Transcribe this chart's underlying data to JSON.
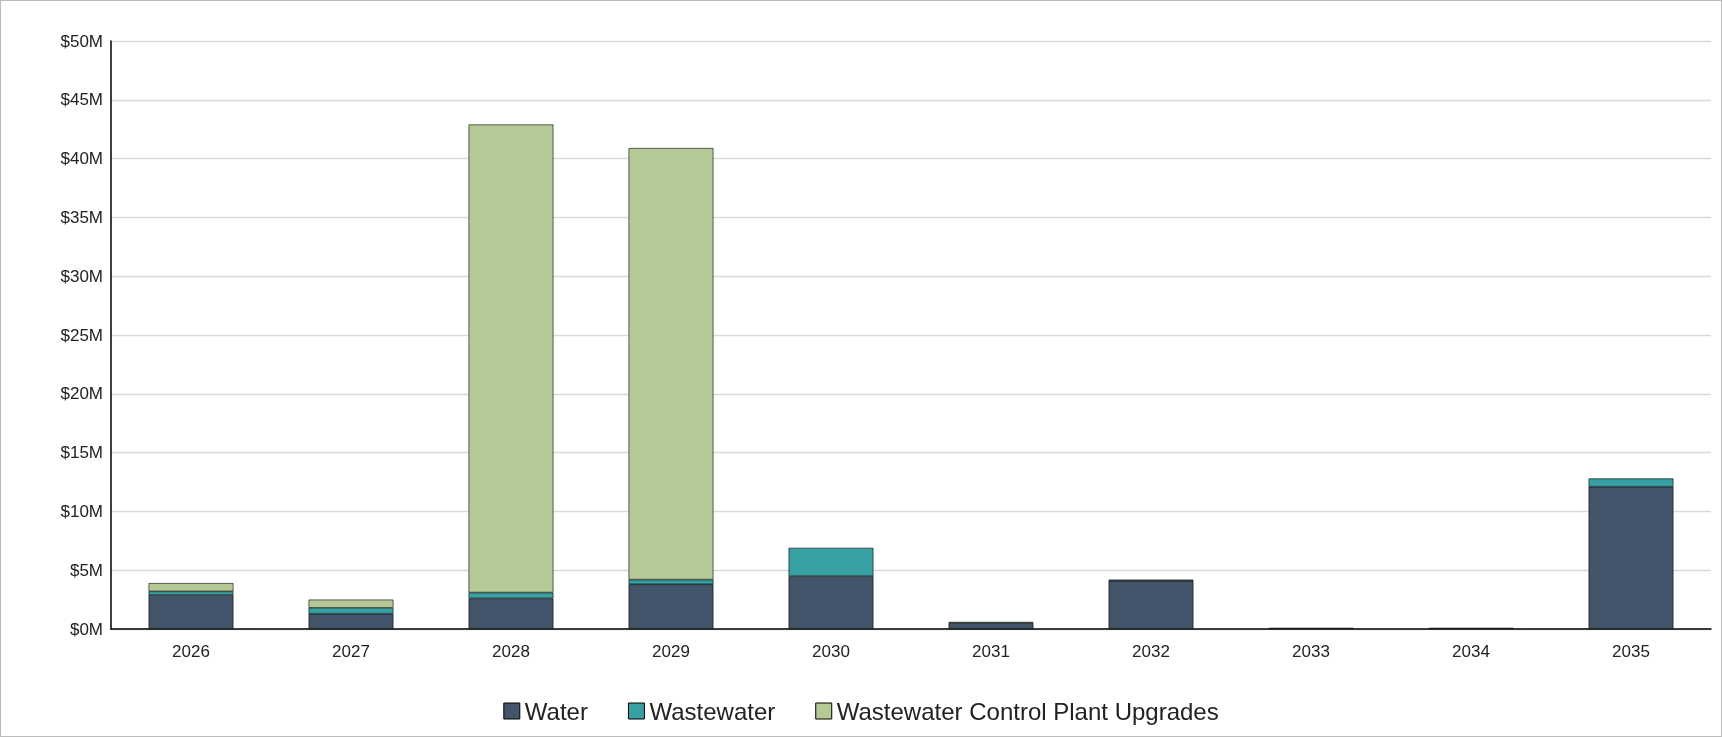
{
  "chart_data": {
    "type": "bar",
    "stacked": true,
    "categories": [
      "2026",
      "2027",
      "2028",
      "2029",
      "2030",
      "2031",
      "2032",
      "2033",
      "2034",
      "2035"
    ],
    "series": [
      {
        "name": "Water",
        "color": "#43556a",
        "values": [
          2.9,
          1.3,
          2.6,
          3.8,
          4.5,
          0.5,
          4.1,
          0.1,
          0.1,
          12.1
        ]
      },
      {
        "name": "Wastewater",
        "color": "#36a0a3",
        "values": [
          0.3,
          0.5,
          0.5,
          0.4,
          2.4,
          0.1,
          0.1,
          null,
          null,
          0.7
        ]
      },
      {
        "name": "Wastewater Control Plant Upgrades",
        "color": "#b5c997",
        "values": [
          0.7,
          0.7,
          39.8,
          36.7,
          null,
          null,
          null,
          null,
          null,
          null
        ]
      }
    ],
    "ylim": [
      0,
      50
    ],
    "yticks": [
      {
        "value": 0,
        "label": "$0M"
      },
      {
        "value": 5,
        "label": "$5M"
      },
      {
        "value": 10,
        "label": "$10M"
      },
      {
        "value": 15,
        "label": "$15M"
      },
      {
        "value": 20,
        "label": "$20M"
      },
      {
        "value": 25,
        "label": "$25M"
      },
      {
        "value": 30,
        "label": "$30M"
      },
      {
        "value": 35,
        "label": "$35M"
      },
      {
        "value": 40,
        "label": "$40M"
      },
      {
        "value": 45,
        "label": "$45M"
      },
      {
        "value": 50,
        "label": "$50M"
      }
    ],
    "grid": "y",
    "legend": "bottom"
  }
}
